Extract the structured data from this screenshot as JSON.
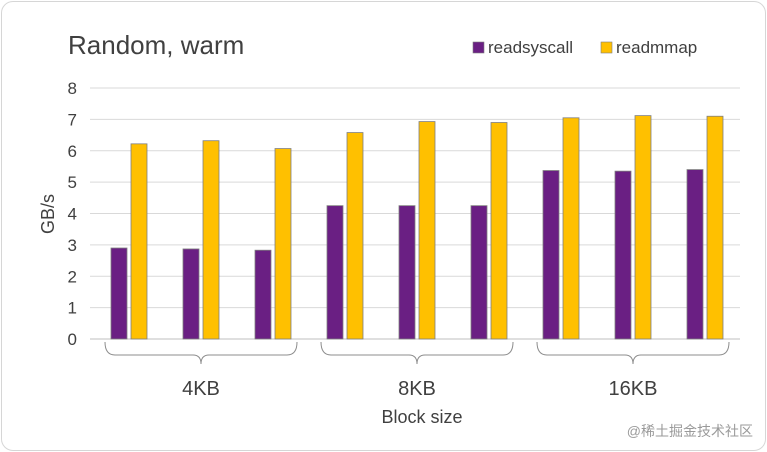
{
  "chart_data": {
    "type": "bar",
    "title": "Random, warm",
    "xlabel": "Block size",
    "ylabel": "GB/s",
    "ylim": [
      0,
      8
    ],
    "yticks": [
      0,
      1,
      2,
      3,
      4,
      5,
      6,
      7,
      8
    ],
    "grid": true,
    "legend_position": "top-right",
    "groups": [
      "4KB",
      "8KB",
      "16KB"
    ],
    "runs_per_group": 3,
    "series": [
      {
        "name": "readsyscall",
        "color": "#6a1f83",
        "values": [
          2.9,
          2.87,
          2.83,
          4.25,
          4.25,
          4.25,
          5.37,
          5.35,
          5.4
        ]
      },
      {
        "name": "readmmap",
        "color": "#ffc000",
        "values": [
          6.22,
          6.32,
          6.07,
          6.58,
          6.93,
          6.9,
          7.05,
          7.12,
          7.1
        ]
      }
    ]
  },
  "watermark": "@稀土掘金技术社区"
}
